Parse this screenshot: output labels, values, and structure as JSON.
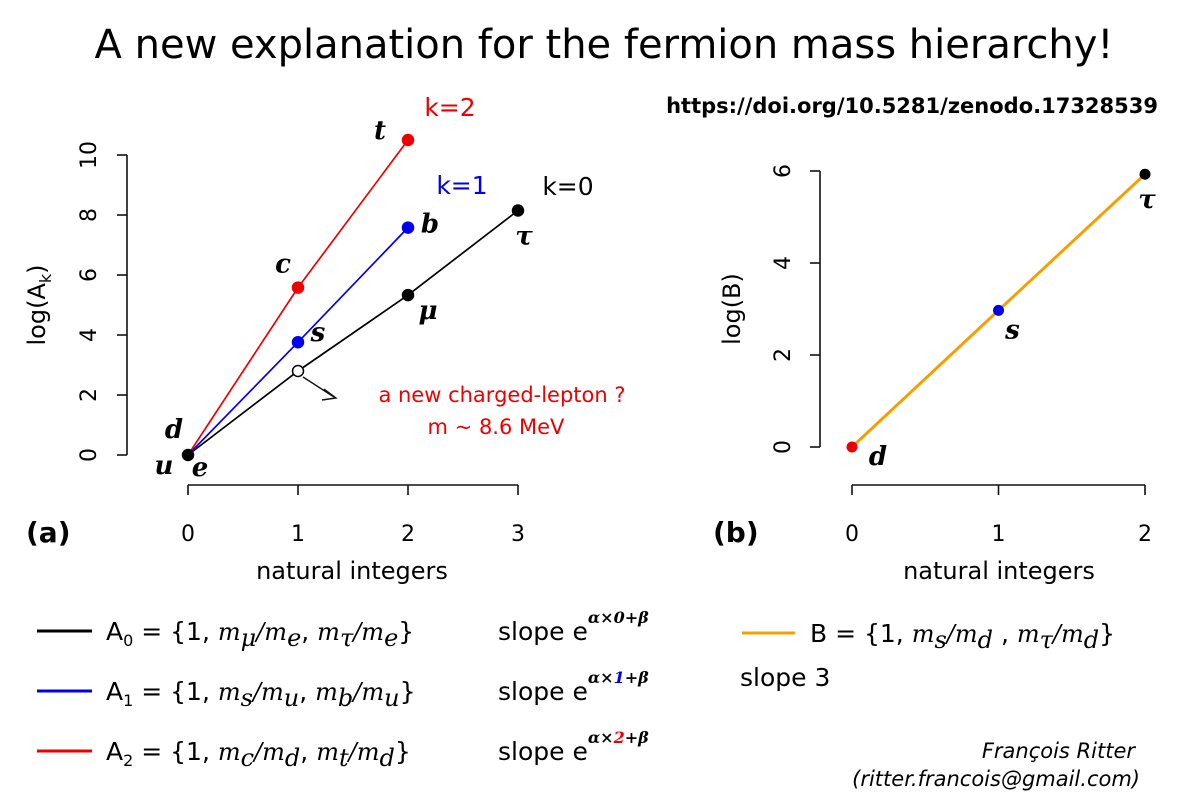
{
  "title": "A new explanation for the fermion mass hierarchy!",
  "doi": "https://doi.org/10.5281/zenodo.17328539",
  "author": {
    "name": "François Ritter",
    "email": "(ritter.francois@gmail.com)"
  },
  "colors": {
    "k0": "#000000",
    "k1": "#0000ee",
    "k2": "#ee0000",
    "B": "#f5a000",
    "annotation": "#ee0000"
  },
  "chart_data": [
    {
      "type": "line",
      "panel_label": "(a)",
      "xlabel": "natural integers",
      "ylabel_main": "log(A",
      "ylabel_sub": "k",
      "ylabel_close": ")",
      "xlim": [
        0,
        3
      ],
      "ylim": [
        0,
        10.5
      ],
      "xticks": [
        0,
        1,
        2,
        3
      ],
      "yticks": [
        0,
        2,
        4,
        6,
        8,
        10
      ],
      "series": [
        {
          "key": "k0",
          "label": "k=0",
          "color": "#000000",
          "x": [
            0,
            1,
            2,
            3
          ],
          "y": [
            0,
            2.8,
            5.33,
            8.15
          ],
          "marker": [
            "filled",
            "open",
            "filled",
            "filled"
          ],
          "point_labels": [
            "",
            "",
            "μ",
            "τ"
          ]
        },
        {
          "key": "k1",
          "label": "k=1",
          "color": "#0000ee",
          "x": [
            0,
            1,
            2
          ],
          "y": [
            0,
            3.76,
            7.58
          ],
          "marker": [
            "none",
            "filled",
            "filled"
          ],
          "point_labels": [
            "",
            "s",
            "b"
          ]
        },
        {
          "key": "k2",
          "label": "k=2",
          "color": "#ee0000",
          "x": [
            0,
            1,
            2
          ],
          "y": [
            0,
            5.58,
            10.5
          ],
          "marker": [
            "none",
            "filled",
            "filled"
          ],
          "point_labels": [
            "",
            "c",
            "t"
          ]
        }
      ],
      "origin_labels": [
        "d",
        "u",
        "e"
      ],
      "annotation": {
        "line1": "a new charged-lepton ?",
        "line2": "m ~ 8.6 MeV"
      }
    },
    {
      "type": "line",
      "panel_label": "(b)",
      "xlabel": "natural integers",
      "ylabel": "log(B)",
      "xlim": [
        0,
        2
      ],
      "ylim": [
        0,
        6
      ],
      "xticks": [
        0,
        1,
        2
      ],
      "yticks": [
        0,
        2,
        4,
        6
      ],
      "series": [
        {
          "key": "B",
          "color": "#f5a000",
          "x": [
            0,
            1,
            2
          ],
          "y": [
            0,
            2.97,
            5.93
          ],
          "marker_colors": [
            "#ee0000",
            "#0000ee",
            "#000000"
          ],
          "point_labels": [
            "d",
            "s",
            "τ"
          ]
        }
      ]
    }
  ],
  "legend_a": [
    {
      "color": "#000000",
      "name": "A",
      "sub": "0",
      "set_open": " = {1, ",
      "r1": "m",
      "r1s": "μ",
      "r1d": "/m",
      "r1ds": "e",
      "sep": ", ",
      "r2": "m",
      "r2s": "τ",
      "r2d": "/m",
      "r2ds": "e",
      "set_close": "}",
      "slope": "slope e",
      "sup_a": "α×",
      "sup_k": "0",
      "sup_b": "+β",
      "k_color": "#000000"
    },
    {
      "color": "#0000ee",
      "name": "A",
      "sub": "1",
      "set_open": " = {1, ",
      "r1": "m",
      "r1s": "s",
      "r1d": "/m",
      "r1ds": "u",
      "sep": ", ",
      "r2": "m",
      "r2s": "b",
      "r2d": "/m",
      "r2ds": "u",
      "set_close": "}",
      "slope": "slope e",
      "sup_a": "α×",
      "sup_k": "1",
      "sup_b": "+β",
      "k_color": "#0000ee"
    },
    {
      "color": "#ee0000",
      "name": "A",
      "sub": "2",
      "set_open": " = {1, ",
      "r1": "m",
      "r1s": "c",
      "r1d": "/m",
      "r1ds": "d",
      "sep": ", ",
      "r2": "m",
      "r2s": "t",
      "r2d": "/m",
      "r2ds": "d",
      "set_close": "}",
      "slope": "slope e",
      "sup_a": "α×",
      "sup_k": "2",
      "sup_b": "+β",
      "k_color": "#ee0000"
    }
  ],
  "legend_b": {
    "color": "#f5a000",
    "name": "B",
    "set_open": " = {1, ",
    "r1": "m",
    "r1s": "s",
    "r1d": "/m",
    "r1ds": "d",
    "sep": " , ",
    "r2": "m",
    "r2s": "τ",
    "r2d": "/m",
    "r2ds": "d",
    "set_close": "}",
    "slope": "slope 3"
  }
}
